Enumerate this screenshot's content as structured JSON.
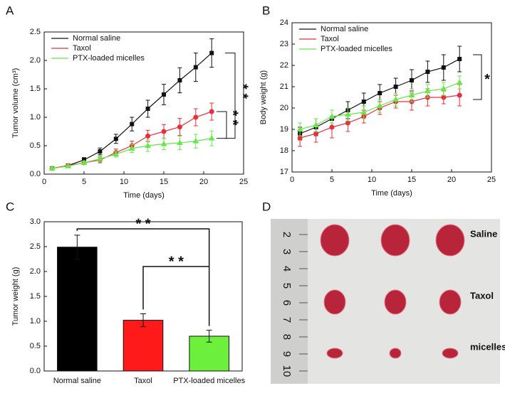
{
  "chart_data": [
    {
      "type": "line",
      "panel": "A",
      "xlabel": "Time (days)",
      "ylabel": "Tumor volume (cm³)",
      "x": [
        1,
        3,
        5,
        7,
        9,
        11,
        13,
        15,
        17,
        19,
        21
      ],
      "xlim": [
        0,
        25
      ],
      "xticks": [
        0,
        5,
        10,
        15,
        20,
        25
      ],
      "ylim": [
        0,
        2.5
      ],
      "yticks": [
        {
          "value": 0,
          "label": "0.0"
        },
        0.5,
        {
          "value": 1,
          "label": "1.0"
        },
        1.5,
        {
          "value": 2,
          "label": "2.0"
        },
        2.5
      ],
      "legend": "upper left",
      "series": [
        {
          "name": "Normal saline",
          "color": "#111111",
          "marker": "square",
          "values": [
            0.1,
            0.15,
            0.25,
            0.4,
            0.62,
            0.88,
            1.15,
            1.4,
            1.65,
            1.88,
            2.13
          ],
          "errors": [
            0.02,
            0.02,
            0.04,
            0.06,
            0.08,
            0.12,
            0.15,
            0.18,
            0.22,
            0.25,
            0.25
          ]
        },
        {
          "name": "Taxol",
          "color": "#e8303a",
          "marker": "circle",
          "values": [
            0.1,
            0.15,
            0.2,
            0.25,
            0.38,
            0.5,
            0.67,
            0.75,
            0.83,
            1.0,
            1.1
          ],
          "errors": [
            0.02,
            0.02,
            0.03,
            0.05,
            0.06,
            0.08,
            0.1,
            0.12,
            0.15,
            0.15,
            0.15
          ]
        },
        {
          "name": "PTX-loaded micelles",
          "color": "#66e84a",
          "marker": "triangle",
          "values": [
            0.1,
            0.14,
            0.2,
            0.27,
            0.35,
            0.45,
            0.5,
            0.53,
            0.55,
            0.58,
            0.63
          ],
          "errors": [
            0.02,
            0.02,
            0.03,
            0.05,
            0.05,
            0.07,
            0.1,
            0.1,
            0.12,
            0.12,
            0.13
          ]
        }
      ],
      "annotations": [
        "* *",
        "* *"
      ]
    },
    {
      "type": "line",
      "panel": "B",
      "xlabel": "Time (days)",
      "ylabel": "Body weight (g)",
      "x": [
        1,
        3,
        5,
        7,
        9,
        11,
        13,
        15,
        17,
        19,
        21
      ],
      "xlim": [
        0,
        25
      ],
      "xticks": [
        0,
        5,
        10,
        15,
        20,
        25
      ],
      "ylim": [
        17,
        24
      ],
      "yticks": [
        17,
        18,
        19,
        20,
        21,
        22,
        23,
        24
      ],
      "legend": "upper left",
      "series": [
        {
          "name": "Normal saline",
          "color": "#111111",
          "marker": "square",
          "values": [
            18.8,
            19.1,
            19.5,
            19.9,
            20.3,
            20.7,
            21.0,
            21.3,
            21.7,
            21.9,
            22.3
          ],
          "errors": [
            0.3,
            0.4,
            0.4,
            0.4,
            0.4,
            0.4,
            0.4,
            0.5,
            0.5,
            0.6,
            0.6
          ]
        },
        {
          "name": "Taxol",
          "color": "#e8303a",
          "marker": "circle",
          "values": [
            18.6,
            18.8,
            19.1,
            19.3,
            19.6,
            20.0,
            20.3,
            20.3,
            20.5,
            20.5,
            20.6
          ],
          "errors": [
            0.4,
            0.4,
            0.5,
            0.4,
            0.3,
            0.3,
            0.3,
            0.4,
            0.4,
            0.3,
            0.5
          ]
        },
        {
          "name": "PTX-loaded micelles",
          "color": "#66e84a",
          "marker": "triangle",
          "values": [
            19.0,
            19.2,
            19.6,
            19.7,
            19.8,
            20.1,
            20.4,
            20.6,
            20.8,
            20.9,
            21.2
          ],
          "errors": [
            0.3,
            0.3,
            0.3,
            0.3,
            0.3,
            0.3,
            0.3,
            0.3,
            0.3,
            0.3,
            0.3
          ]
        }
      ],
      "annotations": [
        "*"
      ]
    },
    {
      "type": "bar",
      "panel": "C",
      "ylabel": "Tumor weight (g)",
      "categories": [
        "Normal saline",
        "Taxol",
        "PTX-loaded micelles"
      ],
      "values": [
        2.49,
        1.02,
        0.7
      ],
      "errors": [
        0.24,
        0.13,
        0.12
      ],
      "colors": [
        "#000000",
        "#ff1a1a",
        "#6cf03c"
      ],
      "ylim": [
        0,
        3
      ],
      "yticks": [
        {
          "value": 0,
          "label": "0.0"
        },
        0.5,
        {
          "value": 1,
          "label": "1.0"
        },
        1.5,
        {
          "value": 2,
          "label": "2.0"
        },
        2.5,
        {
          "value": 3,
          "label": "3.0"
        }
      ],
      "annotations": [
        "* *",
        "* *"
      ]
    }
  ],
  "panel_d": {
    "panel": "D",
    "ruler_labels": [
      "2",
      "3",
      "4",
      "5",
      "6",
      "7",
      "8",
      "9",
      "10"
    ],
    "row_labels": [
      "Saline",
      "Taxol",
      "micelles"
    ]
  }
}
